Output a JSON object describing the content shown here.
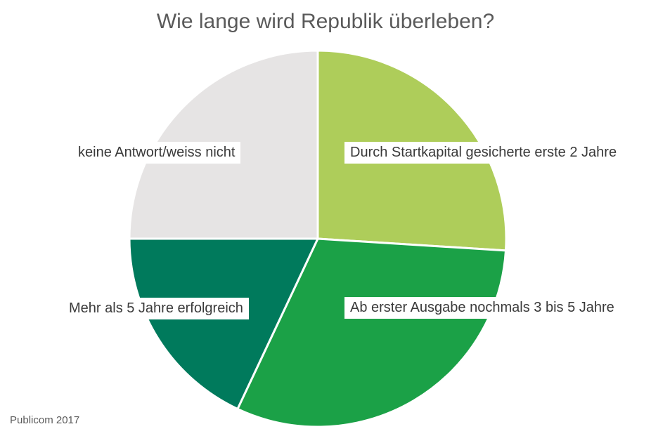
{
  "chart_data": {
    "type": "pie",
    "title": "Wie lange wird Republik überleben?",
    "slices": [
      {
        "label": "Durch Startkapital gesicherte erste 2 Jahre",
        "value": 26,
        "color": "#aecd5a"
      },
      {
        "label": "Ab erster Ausgabe nochmals 3 bis 5 Jahre",
        "value": 31,
        "color": "#1ba147"
      },
      {
        "label": "Mehr als 5 Jahre erfolgreich",
        "value": 18,
        "color": "#007a5c"
      },
      {
        "label": "keine Antwort/weiss nicht",
        "value": 25,
        "color": "#e6e4e4"
      }
    ]
  },
  "source": "Publicom 2017"
}
